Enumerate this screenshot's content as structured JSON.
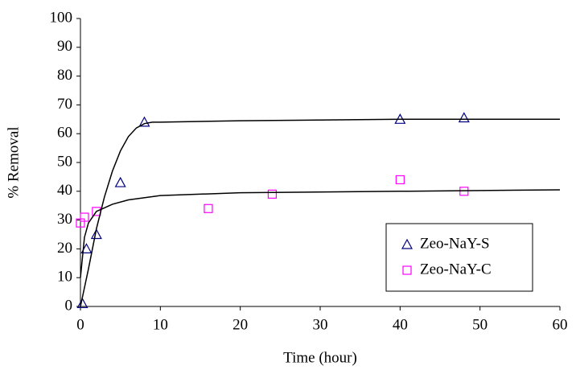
{
  "chart_data": {
    "type": "scatter",
    "x_label": "Time (hour)",
    "y_label": "% Removal",
    "xlim": [
      0,
      60
    ],
    "xticks": [
      0,
      10,
      20,
      30,
      40,
      50,
      60
    ],
    "ylim": [
      0,
      100
    ],
    "yticks": [
      0,
      10,
      20,
      30,
      40,
      50,
      60,
      70,
      80,
      90,
      100
    ],
    "legend": "lower-right",
    "series": [
      {
        "name": "Zeo-NaY-S",
        "color": "#000080",
        "marker": "triangle",
        "x": [
          0.25,
          0.75,
          2,
          5,
          8,
          40,
          48
        ],
        "values": [
          1,
          20,
          25,
          43,
          64,
          65,
          65.5
        ]
      },
      {
        "name": "Zeo-NaY-C",
        "color": "#ff00ff",
        "marker": "square",
        "x": [
          0,
          0.5,
          2,
          16,
          24,
          40,
          48
        ],
        "values": [
          29,
          31,
          33,
          34,
          39,
          44,
          40
        ]
      },
      {
        "color": "#000000",
        "marker": "line",
        "x": [
          0,
          1,
          2,
          3,
          4,
          5,
          6,
          7,
          8,
          9,
          10,
          20,
          40,
          60
        ],
        "values": [
          0,
          13,
          27,
          38,
          47,
          54,
          59,
          62,
          63.5,
          64,
          64,
          64.5,
          65,
          65
        ]
      },
      {
        "color": "#000000",
        "marker": "line",
        "x": [
          0,
          0.5,
          1,
          2,
          4,
          6,
          10,
          20,
          40,
          60
        ],
        "values": [
          10,
          24,
          29,
          33,
          35.5,
          37,
          38.5,
          39.5,
          40,
          40.5
        ]
      }
    ]
  }
}
